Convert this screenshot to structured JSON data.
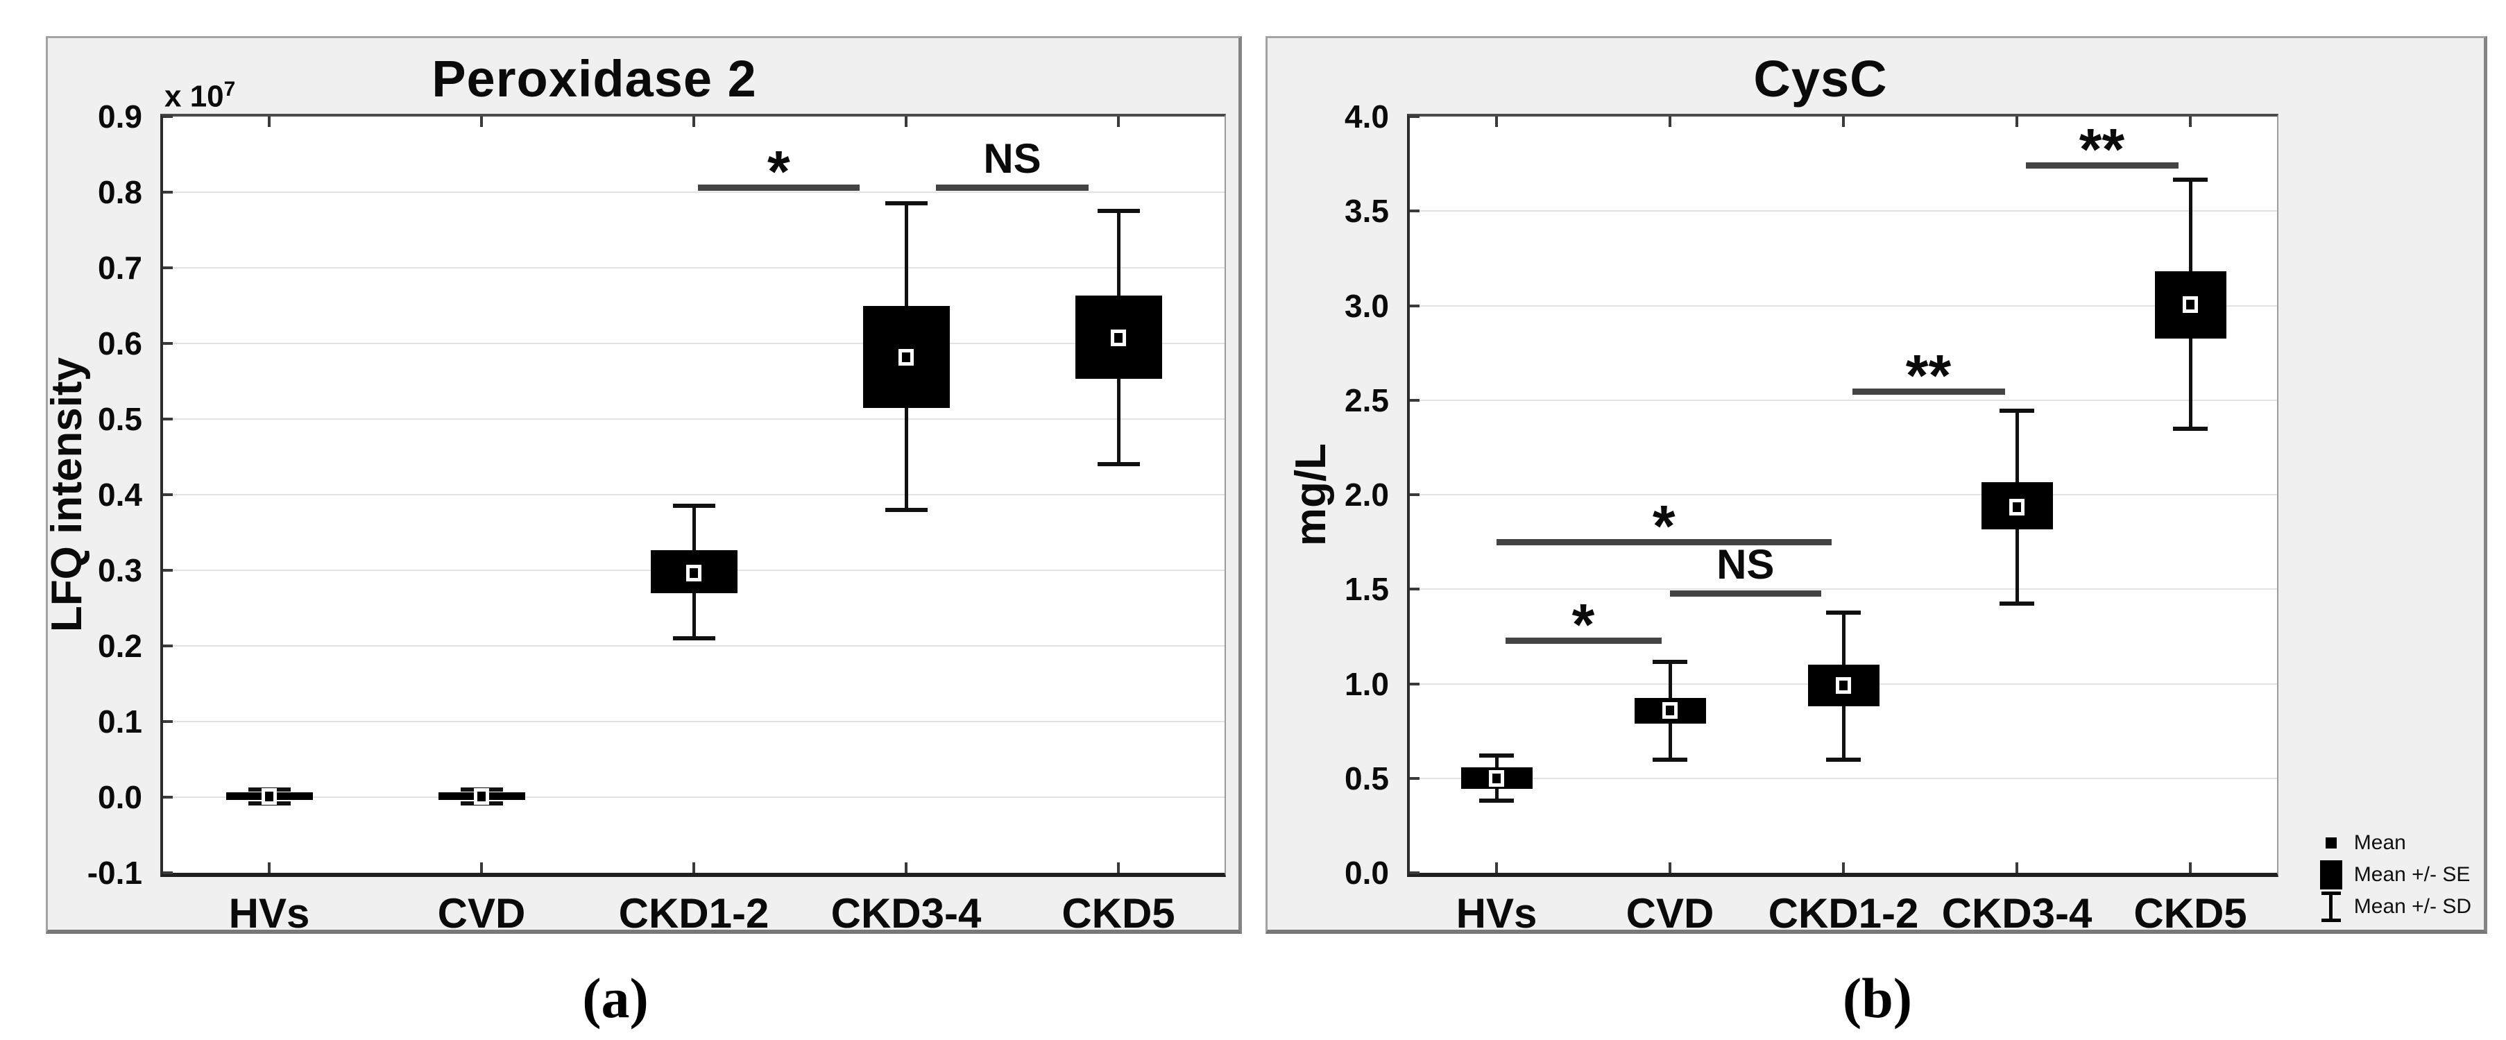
{
  "chart_data": [
    {
      "type": "box",
      "panel": "a",
      "caption": "(a)",
      "title": "Peroxidase 2",
      "ylabel": "LFQ intensity",
      "y_multiplier_base": "x 10",
      "y_multiplier_exponent": "7",
      "ylim": [
        -0.1,
        0.9
      ],
      "yticks": [
        "0.9",
        "0.8",
        "0.7",
        "0.6",
        "0.5",
        "0.4",
        "0.3",
        "0.2",
        "0.1",
        "0.0",
        "-0.1"
      ],
      "grid": "horizontal",
      "categories": [
        "HVs",
        "CVD",
        "CKD1-2",
        "CKD3-4",
        "CKD5"
      ],
      "series_definition": [
        "mean",
        "mean +/- SE box",
        "mean +/- SD whiskers"
      ],
      "series": [
        {
          "category": "HVs",
          "mean": 0.001,
          "se_low": -0.004,
          "se_high": 0.006,
          "sd_low": -0.008,
          "sd_high": 0.01
        },
        {
          "category": "CVD",
          "mean": 0.001,
          "se_low": -0.004,
          "se_high": 0.006,
          "sd_low": -0.008,
          "sd_high": 0.01
        },
        {
          "category": "CKD1-2",
          "mean": 0.296,
          "se_low": 0.27,
          "se_high": 0.327,
          "sd_low": 0.21,
          "sd_high": 0.385
        },
        {
          "category": "CKD3-4",
          "mean": 0.582,
          "se_low": 0.515,
          "se_high": 0.65,
          "sd_low": 0.38,
          "sd_high": 0.785
        },
        {
          "category": "CKD5",
          "mean": 0.607,
          "se_low": 0.553,
          "se_high": 0.663,
          "sd_low": 0.44,
          "sd_high": 0.775
        }
      ],
      "significance": [
        {
          "label": "*",
          "from_index": 2.02,
          "to_index": 2.78,
          "y": 0.806
        },
        {
          "label": "NS",
          "from_index": 3.14,
          "to_index": 3.86,
          "y": 0.806
        }
      ],
      "legend": []
    },
    {
      "type": "box",
      "panel": "b",
      "caption": "(b)",
      "title": "CysC",
      "ylabel": "mg/L",
      "y_multiplier_base": "",
      "y_multiplier_exponent": "",
      "ylim": [
        0.0,
        4.0
      ],
      "yticks": [
        "4.0",
        "3.5",
        "3.0",
        "2.5",
        "2.0",
        "1.5",
        "1.0",
        "0.5",
        "0.0"
      ],
      "grid": "horizontal",
      "categories": [
        "HVs",
        "CVD",
        "CKD1-2",
        "CKD3-4",
        "CKD5"
      ],
      "series_definition": [
        "mean",
        "mean +/- SE box",
        "mean +/- SD whiskers"
      ],
      "series": [
        {
          "category": "HVs",
          "mean": 0.5,
          "se_low": 0.443,
          "se_high": 0.557,
          "sd_low": 0.38,
          "sd_high": 0.62
        },
        {
          "category": "CVD",
          "mean": 0.858,
          "se_low": 0.79,
          "se_high": 0.925,
          "sd_low": 0.6,
          "sd_high": 1.115
        },
        {
          "category": "CKD1-2",
          "mean": 0.99,
          "se_low": 0.88,
          "se_high": 1.1,
          "sd_low": 0.6,
          "sd_high": 1.375
        },
        {
          "category": "CKD3-4",
          "mean": 1.935,
          "se_low": 1.815,
          "se_high": 2.065,
          "sd_low": 1.425,
          "sd_high": 2.445
        },
        {
          "category": "CKD5",
          "mean": 3.005,
          "se_low": 2.825,
          "se_high": 3.18,
          "sd_low": 2.35,
          "sd_high": 3.665
        }
      ],
      "significance": [
        {
          "label": "*",
          "from_index": 0.05,
          "to_index": 0.95,
          "y": 1.228
        },
        {
          "label": "NS",
          "from_index": 1.0,
          "to_index": 1.87,
          "y": 1.48
        },
        {
          "label": "*",
          "from_index": 0.0,
          "to_index": 1.93,
          "y": 1.752
        },
        {
          "label": "**",
          "from_index": 2.05,
          "to_index": 2.93,
          "y": 2.545
        },
        {
          "label": "**",
          "from_index": 3.05,
          "to_index": 3.93,
          "y": 3.742
        }
      ],
      "legend": [
        {
          "icon": "mean-square-icon",
          "label": "Mean"
        },
        {
          "icon": "mean-se-box-icon",
          "label": "Mean +/- SE"
        },
        {
          "icon": "mean-sd-whisker-icon",
          "label": "Mean +/- SD"
        }
      ]
    }
  ]
}
